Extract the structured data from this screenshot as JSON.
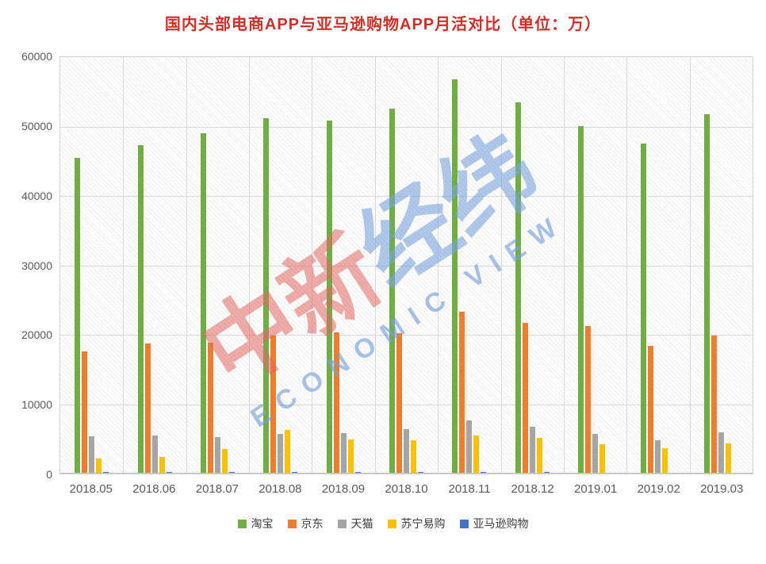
{
  "title": {
    "text": "国内头部电商APP与亚马逊购物APP月活对比（单位：万）",
    "color": "#CD2F2A"
  },
  "watermark": {
    "part_red": "中新",
    "part_blue": "经纬",
    "subtitle": "ECONOMIC VIEW",
    "red_color": "#E06861",
    "blue_color": "#7AA2DA"
  },
  "chart_data": {
    "type": "bar",
    "title": "国内头部电商APP与亚马逊购物APP月活对比（单位：万）",
    "categories": [
      "2018.05",
      "2018.06",
      "2018.07",
      "2018.08",
      "2018.09",
      "2018.10",
      "2018.11",
      "2018.12",
      "2019.01",
      "2019.02",
      "2019.03"
    ],
    "series": [
      {
        "name": "淘宝",
        "color": "#70AD47",
        "values": [
          45500,
          47300,
          49000,
          51200,
          50900,
          52600,
          56800,
          53500,
          50100,
          47600,
          51800
        ]
      },
      {
        "name": "京东",
        "color": "#ED7D31",
        "values": [
          17600,
          18800,
          18900,
          19900,
          20400,
          20200,
          23300,
          21700,
          21300,
          18400,
          19900
        ]
      },
      {
        "name": "天猫",
        "color": "#A5A5A5",
        "values": [
          5400,
          5500,
          5300,
          5700,
          5800,
          6400,
          7700,
          6700,
          5700,
          4750,
          5900
        ]
      },
      {
        "name": "苏宁易购",
        "color": "#FFC000",
        "values": [
          2200,
          2400,
          3600,
          6300,
          4900,
          4800,
          5500,
          5100,
          4200,
          3650,
          4400
        ]
      },
      {
        "name": "亚马逊购物",
        "color": "#4472C4",
        "values": [
          270,
          230,
          200,
          230,
          270,
          230,
          230,
          270,
          120,
          100,
          150
        ]
      }
    ],
    "xlabel": "",
    "ylabel": "",
    "ylim": [
      0,
      60000
    ],
    "yticks": [
      0,
      10000,
      20000,
      30000,
      40000,
      50000,
      60000
    ],
    "grid": true,
    "plot_background": "diagonal-hatch",
    "legend_position": "bottom"
  }
}
